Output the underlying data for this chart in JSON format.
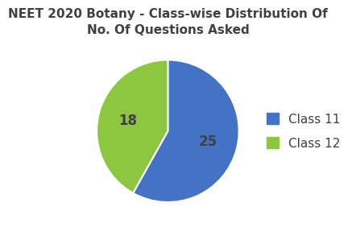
{
  "title": "NEET 2020 Botany - Class-wise Distribution Of\nNo. Of Questions Asked",
  "labels": [
    "Class 11",
    "Class 12"
  ],
  "values": [
    25,
    18
  ],
  "colors": [
    "#4472C4",
    "#8DC63F"
  ],
  "autopct_labels": [
    "25",
    "18"
  ],
  "legend_labels": [
    "Class 11",
    "Class 12"
  ],
  "title_fontsize": 11,
  "label_fontsize": 12,
  "legend_fontsize": 11,
  "startangle": 90,
  "background_color": "#ffffff"
}
